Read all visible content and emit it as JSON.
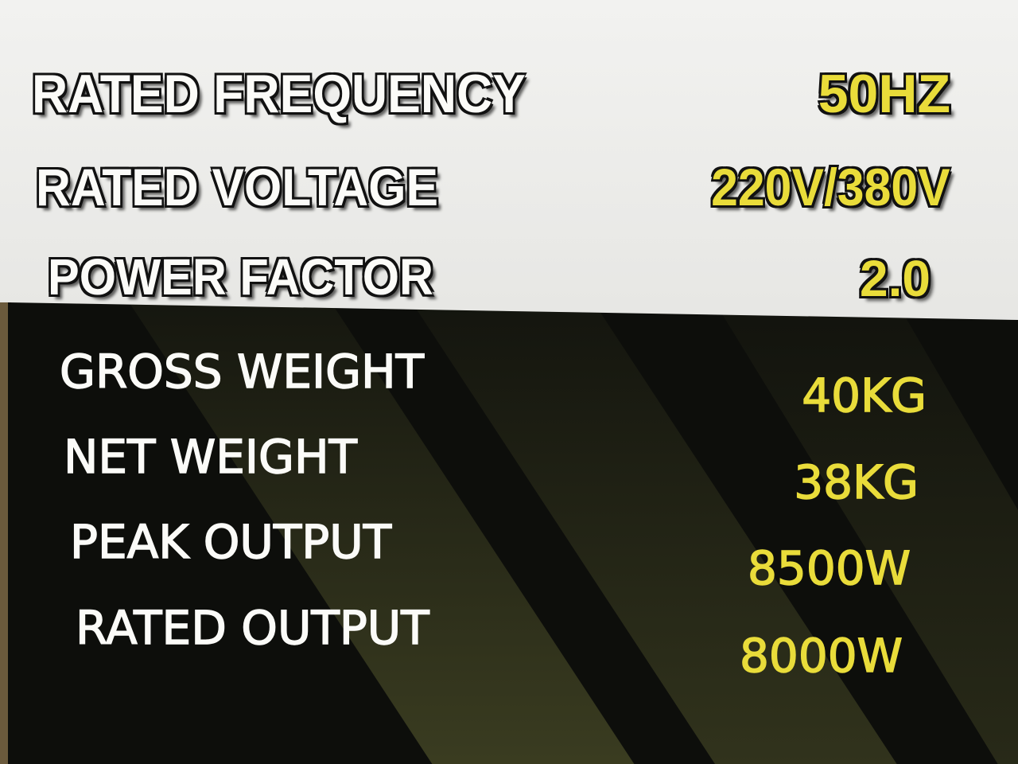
{
  "colors": {
    "label": "#fbfbf8",
    "value": "#e9dc3a",
    "panel": "#0d0e0b",
    "background": "#eeeeec"
  },
  "specs": [
    {
      "label": "RATED FREQUENCY",
      "value": "50HZ"
    },
    {
      "label": "RATED VOLTAGE",
      "value": "220V/380V"
    },
    {
      "label": "POWER FACTOR",
      "value": "2.0"
    },
    {
      "label": "GROSS WEIGHT",
      "value": "40KG"
    },
    {
      "label": "NET WEIGHT",
      "value": "38KG"
    },
    {
      "label": "PEAK OUTPUT",
      "value": "8500W"
    },
    {
      "label": "RATED OUTPUT",
      "value": "8000W"
    }
  ]
}
